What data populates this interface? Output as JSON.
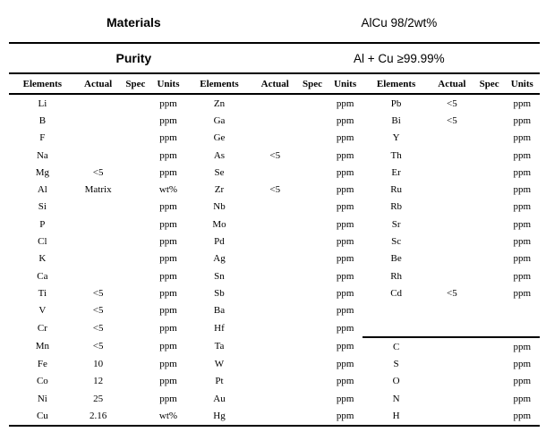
{
  "header": {
    "materials_label": "Materials",
    "materials_value": "AlCu 98/2wt%",
    "purity_label": "Purity",
    "purity_value": "Al + Cu ≥99.99%"
  },
  "table": {
    "column_headers": [
      "Elements",
      "Actual",
      "Spec",
      "Units",
      "Elements",
      "Actual",
      "Spec",
      "Units",
      "Elements",
      "Actual",
      "Spec",
      "Units"
    ],
    "column_kinds": [
      "elements",
      "actual",
      "spec",
      "units"
    ],
    "rows": [
      [
        "Li",
        "",
        "",
        "ppm",
        "Zn",
        "",
        "",
        "ppm",
        "Pb",
        "<5",
        "",
        "ppm"
      ],
      [
        "B",
        "",
        "",
        "ppm",
        "Ga",
        "",
        "",
        "ppm",
        "Bi",
        "<5",
        "",
        "ppm"
      ],
      [
        "F",
        "",
        "",
        "ppm",
        "Ge",
        "",
        "",
        "ppm",
        "Y",
        "",
        "",
        "ppm"
      ],
      [
        "Na",
        "",
        "",
        "ppm",
        "As",
        "<5",
        "",
        "ppm",
        "Th",
        "",
        "",
        "ppm"
      ],
      [
        "Mg",
        "<5",
        "",
        "ppm",
        "Se",
        "",
        "",
        "ppm",
        "Er",
        "",
        "",
        "ppm"
      ],
      [
        "Al",
        "Matrix",
        "",
        "wt%",
        "Zr",
        "<5",
        "",
        "ppm",
        "Ru",
        "",
        "",
        "ppm"
      ],
      [
        "Si",
        "",
        "",
        "ppm",
        "Nb",
        "",
        "",
        "ppm",
        "Rb",
        "",
        "",
        "ppm"
      ],
      [
        "P",
        "",
        "",
        "ppm",
        "Mo",
        "",
        "",
        "ppm",
        "Sr",
        "",
        "",
        "ppm"
      ],
      [
        "Cl",
        "",
        "",
        "ppm",
        "Pd",
        "",
        "",
        "ppm",
        "Sc",
        "",
        "",
        "ppm"
      ],
      [
        "K",
        "",
        "",
        "ppm",
        "Ag",
        "",
        "",
        "ppm",
        "Be",
        "",
        "",
        "ppm"
      ],
      [
        "Ca",
        "",
        "",
        "ppm",
        "Sn",
        "",
        "",
        "ppm",
        "Rh",
        "",
        "",
        "ppm"
      ],
      [
        "Ti",
        "<5",
        "",
        "ppm",
        "Sb",
        "",
        "",
        "ppm",
        "Cd",
        "<5",
        "",
        "ppm"
      ],
      [
        "V",
        "<5",
        "",
        "ppm",
        "Ba",
        "",
        "",
        "ppm",
        "",
        "",
        "",
        ""
      ],
      [
        "Cr",
        "<5",
        "",
        "ppm",
        "Hf",
        "",
        "",
        "ppm",
        "",
        "",
        "",
        ""
      ],
      [
        "Mn",
        "<5",
        "",
        "ppm",
        "Ta",
        "",
        "",
        "ppm",
        "C",
        "",
        "",
        "ppm"
      ],
      [
        "Fe",
        "10",
        "",
        "ppm",
        "W",
        "",
        "",
        "ppm",
        "S",
        "",
        "",
        "ppm"
      ],
      [
        "Co",
        "12",
        "",
        "ppm",
        "Pt",
        "",
        "",
        "ppm",
        "O",
        "",
        "",
        "ppm"
      ],
      [
        "Ni",
        "25",
        "",
        "ppm",
        "Au",
        "",
        "",
        "ppm",
        "N",
        "",
        "",
        "ppm"
      ],
      [
        "Cu",
        "2.16",
        "",
        "wt%",
        "Hg",
        "",
        "",
        "ppm",
        "H",
        "",
        "",
        "ppm"
      ]
    ],
    "group3_divider_before_row": 14
  },
  "colors": {
    "text": "#000000",
    "background": "#ffffff",
    "rule": "#000000"
  }
}
